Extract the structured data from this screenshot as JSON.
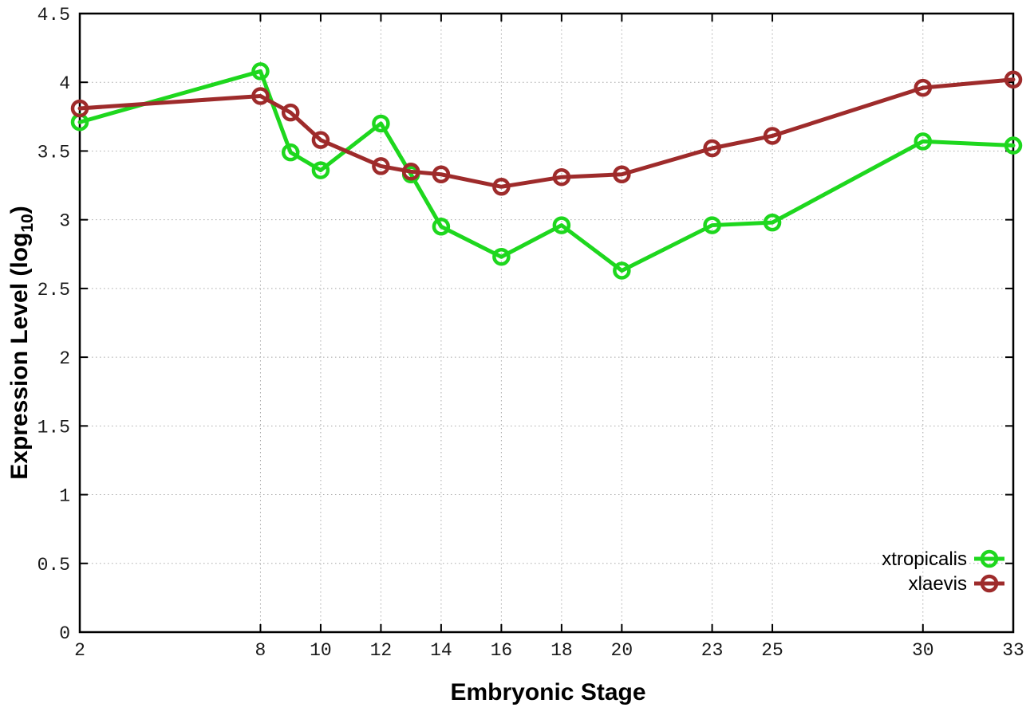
{
  "chart_data": {
    "type": "line",
    "title": "",
    "xlabel": "Embryonic Stage",
    "ylabel": "Expression Level (log10)",
    "ylabel_parts": {
      "pre": "Expression Level (log",
      "sub": "10",
      "post": ")"
    },
    "x": [
      2,
      8,
      9,
      10,
      12,
      13,
      14,
      16,
      18,
      20,
      23,
      25,
      30,
      33
    ],
    "series": [
      {
        "name": "xtropicalis",
        "color": "#1ed71e",
        "values": [
          3.71,
          4.08,
          3.49,
          3.36,
          3.7,
          3.33,
          2.95,
          2.73,
          2.96,
          2.63,
          2.96,
          2.98,
          3.57,
          3.54
        ]
      },
      {
        "name": "xlaevis",
        "color": "#9e2b2b",
        "values": [
          3.81,
          3.9,
          3.78,
          3.58,
          3.39,
          3.35,
          3.33,
          3.24,
          3.31,
          3.33,
          3.52,
          3.61,
          3.96,
          4.02
        ]
      }
    ],
    "xlim": [
      2,
      33
    ],
    "ylim": [
      0,
      4.5
    ],
    "x_ticks": [
      2,
      8,
      10,
      12,
      14,
      16,
      18,
      20,
      23,
      25,
      30,
      33
    ],
    "x_tick_labels": [
      "2",
      "8",
      "10",
      "12",
      "14",
      "16",
      "18",
      "20",
      "23",
      "25",
      "30",
      "33"
    ],
    "y_ticks": [
      0,
      0.5,
      1,
      1.5,
      2,
      2.5,
      3,
      3.5,
      4,
      4.5
    ],
    "y_tick_labels": [
      "0",
      "0.5",
      "1",
      "1.5",
      "2",
      "2.5",
      "3",
      "3.5",
      "4",
      "4.5"
    ],
    "grid": true,
    "grid_color": "#a8a8a8",
    "axis_color": "#000000",
    "background": "#ffffff",
    "legend_position": "bottom-right",
    "marker": "open-circle"
  }
}
